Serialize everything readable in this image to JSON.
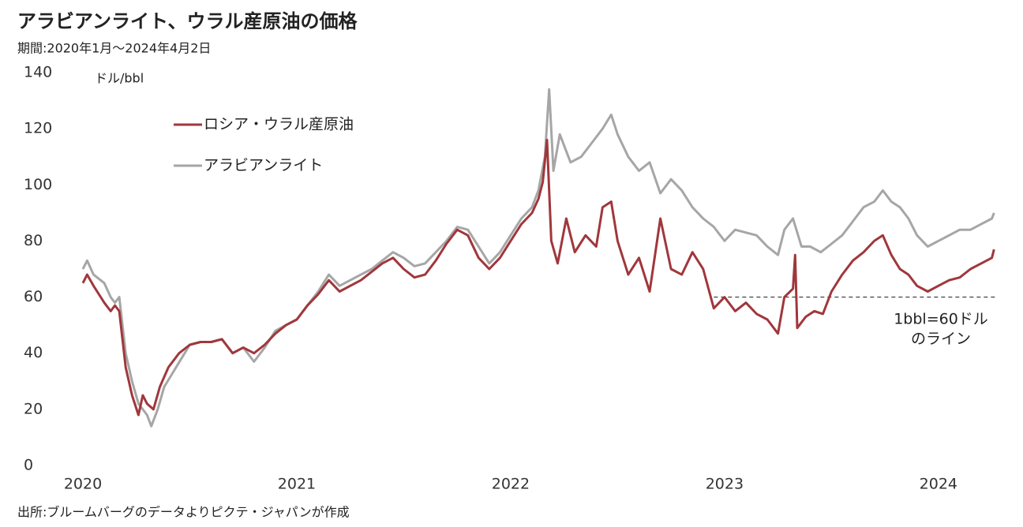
{
  "title": "アラビアンライト、ウラル産原油の価格",
  "subtitle": "期間:2020年1月～2024年4月2日",
  "source": "出所:ブルームバーグのデータよりピクテ・ジャパンが作成",
  "chart_data": {
    "type": "line",
    "y_unit": "ドル/bbl",
    "xlim": [
      2020,
      2024.27
    ],
    "xticks": [
      2020,
      2021,
      2022,
      2023,
      2024
    ],
    "ylim": [
      0,
      140
    ],
    "yticks": [
      0,
      20,
      40,
      60,
      80,
      100,
      120,
      140
    ],
    "grid": false,
    "reference_line": {
      "value": 60,
      "from": 2022.95,
      "label": [
        "1bbl=60ドル",
        "のライン"
      ]
    },
    "series": [
      {
        "name": "ロシア・ウラル産原油",
        "color": "#a0373c",
        "x": [
          2020.0,
          2020.02,
          2020.05,
          2020.1,
          2020.13,
          2020.15,
          2020.17,
          2020.2,
          2020.23,
          2020.26,
          2020.28,
          2020.3,
          2020.33,
          2020.36,
          2020.4,
          2020.45,
          2020.5,
          2020.55,
          2020.6,
          2020.65,
          2020.7,
          2020.75,
          2020.8,
          2020.85,
          2020.9,
          2020.95,
          2021.0,
          2021.05,
          2021.1,
          2021.15,
          2021.2,
          2021.25,
          2021.3,
          2021.35,
          2021.4,
          2021.45,
          2021.5,
          2021.55,
          2021.6,
          2021.65,
          2021.7,
          2021.75,
          2021.8,
          2021.85,
          2021.9,
          2021.95,
          2022.0,
          2022.05,
          2022.1,
          2022.13,
          2022.15,
          2022.17,
          2022.19,
          2022.22,
          2022.26,
          2022.3,
          2022.35,
          2022.4,
          2022.43,
          2022.47,
          2022.5,
          2022.55,
          2022.6,
          2022.65,
          2022.7,
          2022.75,
          2022.8,
          2022.85,
          2022.9,
          2022.95,
          2023.0,
          2023.05,
          2023.1,
          2023.15,
          2023.2,
          2023.25,
          2023.28,
          2023.32,
          2023.33,
          2023.34,
          2023.38,
          2023.42,
          2023.46,
          2023.5,
          2023.55,
          2023.6,
          2023.65,
          2023.7,
          2023.74,
          2023.78,
          2023.82,
          2023.86,
          2023.9,
          2023.95,
          2024.0,
          2024.05,
          2024.1,
          2024.15,
          2024.2,
          2024.25,
          2024.26
        ],
        "values": [
          65,
          68,
          64,
          58,
          55,
          57,
          55,
          35,
          25,
          18,
          25,
          22,
          20,
          28,
          35,
          40,
          43,
          44,
          44,
          45,
          40,
          42,
          40,
          43,
          47,
          50,
          52,
          57,
          61,
          66,
          62,
          64,
          66,
          69,
          72,
          74,
          70,
          67,
          68,
          73,
          79,
          84,
          82,
          74,
          70,
          74,
          80,
          86,
          90,
          95,
          101,
          116,
          80,
          72,
          88,
          76,
          82,
          78,
          92,
          94,
          80,
          68,
          74,
          62,
          88,
          70,
          68,
          76,
          70,
          56,
          60,
          55,
          58,
          54,
          52,
          47,
          60,
          63,
          75,
          49,
          53,
          55,
          54,
          62,
          68,
          73,
          76,
          80,
          82,
          75,
          70,
          68,
          64,
          62,
          64,
          66,
          67,
          70,
          72,
          74,
          77
        ]
      },
      {
        "name": "アラビアンライト",
        "color": "#a6a6a6",
        "x": [
          2020.0,
          2020.02,
          2020.05,
          2020.1,
          2020.13,
          2020.15,
          2020.17,
          2020.2,
          2020.23,
          2020.26,
          2020.3,
          2020.32,
          2020.35,
          2020.38,
          2020.42,
          2020.46,
          2020.5,
          2020.55,
          2020.6,
          2020.65,
          2020.7,
          2020.75,
          2020.8,
          2020.85,
          2020.9,
          2020.95,
          2021.0,
          2021.05,
          2021.1,
          2021.15,
          2021.2,
          2021.25,
          2021.3,
          2021.35,
          2021.4,
          2021.45,
          2021.5,
          2021.55,
          2021.6,
          2021.65,
          2021.7,
          2021.75,
          2021.8,
          2021.85,
          2021.9,
          2021.95,
          2022.0,
          2022.05,
          2022.1,
          2022.13,
          2022.16,
          2022.18,
          2022.2,
          2022.23,
          2022.28,
          2022.33,
          2022.38,
          2022.43,
          2022.47,
          2022.5,
          2022.55,
          2022.6,
          2022.65,
          2022.7,
          2022.75,
          2022.8,
          2022.85,
          2022.9,
          2022.95,
          2023.0,
          2023.05,
          2023.1,
          2023.15,
          2023.2,
          2023.25,
          2023.28,
          2023.32,
          2023.36,
          2023.4,
          2023.45,
          2023.5,
          2023.55,
          2023.6,
          2023.65,
          2023.7,
          2023.74,
          2023.78,
          2023.82,
          2023.86,
          2023.9,
          2023.95,
          2024.0,
          2024.05,
          2024.1,
          2024.15,
          2024.2,
          2024.25,
          2024.26
        ],
        "values": [
          70,
          73,
          68,
          65,
          60,
          58,
          60,
          40,
          30,
          22,
          18,
          14,
          20,
          28,
          33,
          38,
          43,
          44,
          44,
          45,
          40,
          42,
          37,
          42,
          48,
          50,
          52,
          57,
          62,
          68,
          64,
          66,
          68,
          70,
          73,
          76,
          74,
          71,
          72,
          76,
          80,
          85,
          84,
          78,
          72,
          76,
          82,
          88,
          92,
          98,
          110,
          134,
          105,
          118,
          108,
          110,
          115,
          120,
          125,
          118,
          110,
          105,
          108,
          97,
          102,
          98,
          92,
          88,
          85,
          80,
          84,
          83,
          82,
          78,
          75,
          84,
          88,
          78,
          78,
          76,
          79,
          82,
          87,
          92,
          94,
          98,
          94,
          92,
          88,
          82,
          78,
          80,
          82,
          84,
          84,
          86,
          88,
          90
        ]
      }
    ]
  }
}
